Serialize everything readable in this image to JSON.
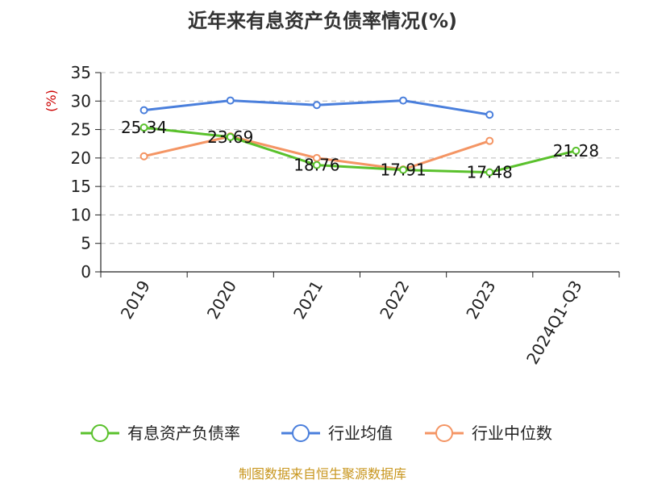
{
  "chart_data": {
    "type": "line",
    "title": "近年来有息资产负债率情况(%)",
    "ylabel": "(%)",
    "xlabel": "",
    "categories": [
      "2019",
      "2020",
      "2021",
      "2022",
      "2023",
      "2024Q1-Q3"
    ],
    "ylim": [
      0,
      35
    ],
    "yticks": [
      0,
      5,
      10,
      15,
      20,
      25,
      30,
      35
    ],
    "grid": "horizontal-dashed",
    "legend_position": "bottom",
    "series": [
      {
        "name": "有息资产负债率",
        "color": "#5ac12c",
        "values": [
          25.34,
          23.69,
          18.76,
          17.91,
          17.48,
          21.28
        ],
        "labels": [
          "25.34",
          "23.69",
          "18.76",
          "17.91",
          "17.48",
          "21.28"
        ],
        "show_labels": true
      },
      {
        "name": "行业均值",
        "color": "#4a7fdc",
        "values": [
          28.4,
          30.1,
          29.3,
          30.1,
          27.6,
          null
        ],
        "show_labels": false
      },
      {
        "name": "行业中位数",
        "color": "#f49564",
        "values": [
          20.3,
          23.8,
          20.0,
          18.0,
          23.0,
          null
        ],
        "show_labels": false
      }
    ]
  },
  "source_text": "制图数据来自恒生聚源数据库",
  "colors": {
    "axis": "#222222",
    "grid": "#bbbbbb",
    "unit_label": "#cc0000",
    "source_text": "#c8961e",
    "title": "#333333"
  }
}
